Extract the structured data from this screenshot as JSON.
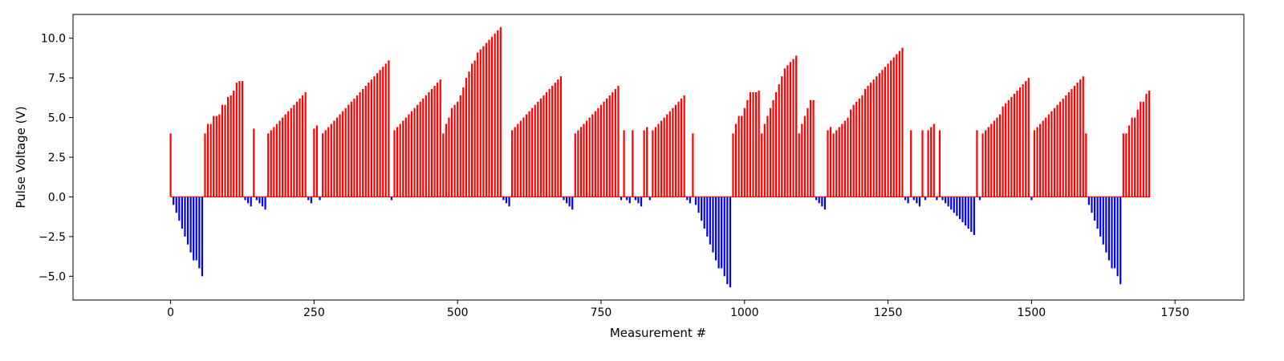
{
  "chart_data": {
    "type": "bar",
    "title": "",
    "xlabel": "Measurement #",
    "ylabel": "Pulse Voltage (V)",
    "xlim": [
      -170,
      1870
    ],
    "ylim": [
      -6.5,
      11.5
    ],
    "xticks": [
      0,
      250,
      500,
      750,
      1000,
      1250,
      1500,
      1750
    ],
    "xtick_labels": [
      "0",
      "250",
      "500",
      "750",
      "1000",
      "1250",
      "1500",
      "1750"
    ],
    "yticks": [
      -5.0,
      -2.5,
      0.0,
      2.5,
      5.0,
      7.5,
      10.0
    ],
    "ytick_labels": [
      "−5.0",
      "−2.5",
      "0.0",
      "2.5",
      "5.0",
      "7.5",
      "10.0"
    ],
    "grid": false,
    "colors": {
      "positive": "#ff0000",
      "negative": "#0000ff"
    },
    "series": [
      {
        "x": [
          0,
          5,
          10,
          15,
          20,
          25,
          30,
          35,
          40,
          45,
          50,
          55,
          60,
          65,
          70,
          75,
          80,
          85,
          90,
          95,
          100,
          105,
          110,
          115,
          120,
          125,
          130,
          135,
          140,
          145,
          150,
          155,
          160,
          165,
          170,
          175,
          180,
          185,
          190,
          195,
          200,
          205,
          210,
          215,
          220,
          225,
          230,
          235,
          240,
          245,
          250,
          255,
          260,
          265,
          270,
          275,
          280,
          285,
          290,
          295,
          300,
          305,
          310,
          315,
          320,
          325,
          330,
          335,
          340,
          345,
          350,
          355,
          360,
          365,
          370,
          375,
          380,
          385,
          390,
          395,
          400,
          405,
          410,
          415,
          420,
          425,
          430,
          435,
          440,
          445,
          450,
          455,
          460,
          465,
          470,
          475,
          480,
          485,
          490,
          495,
          500,
          505,
          510,
          515,
          520,
          525,
          530,
          535,
          540,
          545,
          550,
          555,
          560,
          565,
          570,
          575,
          580,
          585,
          590,
          595,
          600,
          605,
          610,
          615,
          620,
          625,
          630,
          635,
          640,
          645,
          650,
          655,
          660,
          665,
          670,
          675,
          680,
          685,
          690,
          695,
          700,
          705,
          710,
          715,
          720,
          725,
          730,
          735,
          740,
          745,
          750,
          755,
          760,
          765,
          770,
          775,
          780,
          785,
          790,
          795,
          800,
          805,
          810,
          815,
          820,
          825,
          830,
          835,
          840,
          845,
          850,
          855,
          860,
          865,
          870,
          875,
          880,
          885,
          890,
          895,
          900,
          905,
          910,
          915,
          920,
          925,
          930,
          935,
          940,
          945,
          950,
          955,
          960,
          965,
          970,
          975,
          980,
          985,
          990,
          995,
          1000,
          1005,
          1010,
          1015,
          1020,
          1025,
          1030,
          1035,
          1040,
          1045,
          1050,
          1055,
          1060,
          1065,
          1070,
          1075,
          1080,
          1085,
          1090,
          1095,
          1100,
          1105,
          1110,
          1115,
          1120,
          1125,
          1130,
          1135,
          1140,
          1145,
          1150,
          1155,
          1160,
          1165,
          1170,
          1175,
          1180,
          1185,
          1190,
          1195,
          1200,
          1205,
          1210,
          1215,
          1220,
          1225,
          1230,
          1235,
          1240,
          1245,
          1250,
          1255,
          1260,
          1265,
          1270,
          1275,
          1280,
          1285,
          1290,
          1295,
          1300,
          1305,
          1310,
          1315,
          1320,
          1325,
          1330,
          1335,
          1340,
          1345,
          1350,
          1355,
          1360,
          1365,
          1370,
          1375,
          1380,
          1385,
          1390,
          1395,
          1400,
          1405,
          1410,
          1415,
          1420,
          1425,
          1430,
          1435,
          1440,
          1445,
          1450,
          1455,
          1460,
          1465,
          1470,
          1475,
          1480,
          1485,
          1490,
          1495,
          1500,
          1505,
          1510,
          1515,
          1520,
          1525,
          1530,
          1535,
          1540,
          1545,
          1550,
          1555,
          1560,
          1565,
          1570,
          1575,
          1580,
          1585,
          1590,
          1595,
          1600,
          1605,
          1610,
          1615,
          1620,
          1625,
          1630,
          1635,
          1640,
          1645,
          1650,
          1655,
          1660,
          1665,
          1670,
          1675,
          1680,
          1685,
          1690,
          1695,
          1700,
          1705
        ],
        "values": [
          4.0,
          -0.5,
          -1.0,
          -1.5,
          -2.0,
          -2.5,
          -3.0,
          -3.5,
          -4.0,
          -4.0,
          -4.5,
          -5.0,
          4.0,
          4.6,
          4.6,
          5.1,
          5.1,
          5.2,
          5.8,
          5.8,
          6.3,
          6.4,
          6.7,
          7.2,
          7.3,
          7.3,
          -0.2,
          -0.4,
          -0.6,
          4.3,
          -0.2,
          -0.4,
          -0.6,
          -0.8,
          4.0,
          4.2,
          4.4,
          4.6,
          4.8,
          5.0,
          5.2,
          5.4,
          5.6,
          5.8,
          6.0,
          6.2,
          6.4,
          6.6,
          -0.2,
          -0.4,
          4.3,
          4.5,
          -0.2,
          4.0,
          4.2,
          4.4,
          4.6,
          4.8,
          5.0,
          5.2,
          5.4,
          5.6,
          5.8,
          6.0,
          6.2,
          6.4,
          6.6,
          6.8,
          7.0,
          7.2,
          7.4,
          7.6,
          7.8,
          8.0,
          8.2,
          8.4,
          8.6,
          -0.2,
          4.2,
          4.4,
          4.6,
          4.8,
          5.0,
          5.2,
          5.4,
          5.6,
          5.8,
          6.0,
          6.2,
          6.4,
          6.6,
          6.8,
          7.0,
          7.2,
          7.4,
          4.0,
          4.6,
          5.0,
          5.6,
          5.8,
          6.0,
          6.4,
          6.9,
          7.5,
          7.9,
          8.4,
          8.6,
          9.1,
          9.3,
          9.5,
          9.7,
          9.9,
          10.1,
          10.3,
          10.5,
          10.7,
          -0.2,
          -0.4,
          -0.6,
          4.2,
          4.4,
          4.6,
          4.8,
          5.0,
          5.2,
          5.4,
          5.6,
          5.8,
          6.0,
          6.2,
          6.4,
          6.6,
          6.8,
          7.0,
          7.2,
          7.4,
          7.6,
          -0.2,
          -0.4,
          -0.6,
          -0.8,
          4.0,
          4.2,
          4.4,
          4.6,
          4.8,
          5.0,
          5.2,
          5.4,
          5.6,
          5.8,
          6.0,
          6.2,
          6.4,
          6.6,
          6.8,
          7.0,
          -0.2,
          4.2,
          -0.2,
          -0.4,
          4.2,
          -0.2,
          -0.4,
          -0.6,
          4.2,
          4.4,
          -0.2,
          4.2,
          4.4,
          4.6,
          4.8,
          5.0,
          5.2,
          5.4,
          5.6,
          5.8,
          6.0,
          6.2,
          6.4,
          -0.2,
          -0.4,
          4.0,
          -0.5,
          -1.0,
          -1.5,
          -2.0,
          -2.5,
          -3.0,
          -3.5,
          -4.0,
          -4.5,
          -4.5,
          -5.0,
          -5.5,
          -5.7,
          4.0,
          4.6,
          5.1,
          5.1,
          5.6,
          6.1,
          6.6,
          6.6,
          6.6,
          6.7,
          4.0,
          4.6,
          5.1,
          5.6,
          6.1,
          6.6,
          7.1,
          7.6,
          8.1,
          8.3,
          8.5,
          8.7,
          8.9,
          4.0,
          4.6,
          5.1,
          5.6,
          6.1,
          6.1,
          -0.2,
          -0.4,
          -0.6,
          -0.8,
          4.2,
          4.4,
          4.0,
          4.2,
          4.4,
          4.6,
          4.8,
          5.0,
          5.5,
          5.8,
          6.0,
          6.2,
          6.4,
          6.8,
          7.0,
          7.2,
          7.4,
          7.6,
          7.8,
          8.0,
          8.2,
          8.4,
          8.6,
          8.8,
          9.0,
          9.2,
          9.4,
          -0.2,
          -0.4,
          4.2,
          -0.2,
          -0.4,
          -0.6,
          4.2,
          -0.2,
          4.2,
          4.4,
          4.6,
          -0.2,
          4.2,
          -0.2,
          -0.4,
          -0.6,
          -0.8,
          -1.0,
          -1.2,
          -1.4,
          -1.6,
          -1.8,
          -2.0,
          -2.2,
          -2.4,
          4.2,
          -0.2,
          4.0,
          4.2,
          4.4,
          4.6,
          4.8,
          5.0,
          5.2,
          5.7,
          5.9,
          6.1,
          6.3,
          6.5,
          6.7,
          6.9,
          7.1,
          7.3,
          7.5,
          -0.2,
          4.2,
          4.4,
          4.6,
          4.8,
          5.0,
          5.2,
          5.4,
          5.6,
          5.8,
          6.0,
          6.2,
          6.4,
          6.6,
          6.8,
          7.0,
          7.2,
          7.4,
          7.6,
          4.0,
          -0.5,
          -1.0,
          -1.5,
          -2.0,
          -2.5,
          -3.0,
          -3.5,
          -4.0,
          -4.5,
          -4.5,
          -5.0,
          -5.5,
          4.0,
          4.0,
          4.5,
          5.0,
          5.0,
          5.5,
          6.0,
          6.0,
          6.5,
          6.7
        ]
      }
    ]
  }
}
